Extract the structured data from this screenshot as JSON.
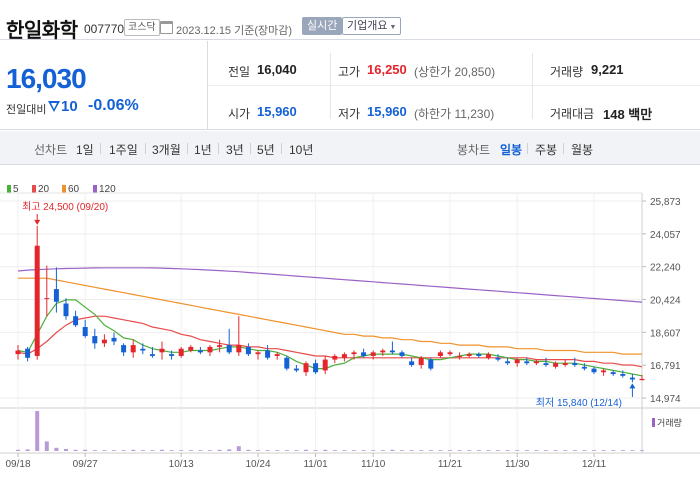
{
  "header": {
    "stock_name": "한일화학",
    "stock_code": "007770",
    "market": "코스닥",
    "base_date": "2023.12.15  기준(장마감)",
    "realtime_label": "실시간",
    "company_info_label": "기업개요"
  },
  "price": {
    "current": "16,030",
    "change_label": "전일대비",
    "change_value": "10",
    "change_rate": "-0.06%",
    "down_color": "#1461d6",
    "up_color": "#e4262c"
  },
  "quote": {
    "prev_close": {
      "label": "전일",
      "value": "16,040"
    },
    "high": {
      "label": "고가",
      "value": "16,250",
      "sub": "(상한가 20,850)"
    },
    "volume": {
      "label": "거래량",
      "value": "9,221"
    },
    "open": {
      "label": "시가",
      "value": "15,960"
    },
    "low": {
      "label": "저가",
      "value": "15,960",
      "sub": "(하한가 11,230)"
    },
    "trade_value": {
      "label": "거래대금",
      "value": "148 백만"
    }
  },
  "toolbar": {
    "line_chart_label": "선차트",
    "periods": [
      "1일",
      "1주일",
      "3개월",
      "1년",
      "3년",
      "5년",
      "10년"
    ],
    "candle_chart_label": "봉차트",
    "candle_periods": [
      "일봉",
      "주봉",
      "월봉"
    ],
    "active_candle_period": "일봉"
  },
  "chart_data": {
    "type": "candlestick",
    "legend": [
      {
        "name": "5",
        "color": "#4caf3a"
      },
      {
        "name": "20",
        "color": "#e84b4b"
      },
      {
        "name": "60",
        "color": "#f0922b"
      },
      {
        "name": "120",
        "color": "#9a62c6"
      }
    ],
    "y_ticks": [
      "25,873",
      "24,057",
      "22,240",
      "20,424",
      "18,607",
      "16,791",
      "14,974"
    ],
    "y_range": [
      14974,
      25873
    ],
    "x_ticks": [
      "09/18",
      "09/27",
      "10/13",
      "10/24",
      "11/01",
      "11/10",
      "11/21",
      "11/30",
      "12/11"
    ],
    "max_annotation": "최고 24,500 (09/20)",
    "min_annotation": "최저 15,840 (12/14)",
    "volume_label": "거래량",
    "up_color": "#e4262c",
    "down_color": "#1461d6",
    "candles": [
      [
        17400,
        17900,
        17100,
        17600
      ],
      [
        17700,
        17800,
        17000,
        17200
      ],
      [
        17300,
        24500,
        17100,
        23400
      ],
      [
        20500,
        22300,
        19500,
        20500
      ],
      [
        21000,
        22200,
        19700,
        20300
      ],
      [
        20200,
        20500,
        19300,
        19500
      ],
      [
        19500,
        19800,
        18900,
        19000
      ],
      [
        18900,
        19300,
        18300,
        18400
      ],
      [
        18400,
        18800,
        17700,
        18000
      ],
      [
        18000,
        18500,
        17800,
        18200
      ],
      [
        18300,
        18600,
        17900,
        18100
      ],
      [
        17900,
        18000,
        17300,
        17500
      ],
      [
        17500,
        18200,
        17200,
        17900
      ],
      [
        17700,
        18000,
        17400,
        17600
      ],
      [
        17400,
        17800,
        17200,
        17300
      ],
      [
        17500,
        18100,
        17100,
        17700
      ],
      [
        17400,
        17600,
        17100,
        17300
      ],
      [
        17300,
        17800,
        17200,
        17700
      ],
      [
        17600,
        17900,
        17500,
        17800
      ],
      [
        17600,
        17800,
        17400,
        17500
      ],
      [
        17500,
        17900,
        17300,
        17800
      ],
      [
        17800,
        18200,
        17500,
        17900
      ],
      [
        17900,
        18800,
        17400,
        17500
      ],
      [
        17500,
        19500,
        17300,
        17900
      ],
      [
        17800,
        18000,
        17300,
        17400
      ],
      [
        17400,
        17600,
        17100,
        17500
      ],
      [
        17600,
        17900,
        17100,
        17200
      ],
      [
        17300,
        17500,
        17100,
        17400
      ],
      [
        17200,
        17300,
        16500,
        16600
      ],
      [
        16600,
        16800,
        16400,
        16500
      ],
      [
        16400,
        17000,
        16200,
        16900
      ],
      [
        16900,
        17100,
        16300,
        16400
      ],
      [
        16500,
        17300,
        16300,
        17100
      ],
      [
        17100,
        17400,
        16900,
        17300
      ],
      [
        17200,
        17500,
        17000,
        17400
      ],
      [
        17400,
        17600,
        17100,
        17500
      ],
      [
        17500,
        17700,
        17200,
        17300
      ],
      [
        17300,
        17600,
        17100,
        17500
      ],
      [
        17500,
        17700,
        17300,
        17600
      ],
      [
        17600,
        18100,
        17400,
        17500
      ],
      [
        17500,
        17600,
        17200,
        17300
      ],
      [
        17000,
        17200,
        16700,
        16800
      ],
      [
        16800,
        17300,
        16600,
        17200
      ],
      [
        17100,
        17200,
        16500,
        16600
      ],
      [
        17300,
        17600,
        17200,
        17500
      ],
      [
        17400,
        17600,
        17300,
        17500
      ],
      [
        17300,
        17500,
        17100,
        17300
      ],
      [
        17300,
        17500,
        17200,
        17400
      ],
      [
        17400,
        17500,
        17200,
        17300
      ],
      [
        17200,
        17500,
        17100,
        17400
      ],
      [
        17200,
        17400,
        17000,
        17100
      ],
      [
        17000,
        17200,
        16800,
        16900
      ],
      [
        16900,
        17200,
        16700,
        17100
      ],
      [
        17000,
        17200,
        16800,
        16900
      ],
      [
        16900,
        17100,
        16800,
        17000
      ],
      [
        16900,
        17200,
        16700,
        16800
      ],
      [
        16700,
        17000,
        16600,
        16900
      ],
      [
        16800,
        17100,
        16700,
        16900
      ],
      [
        16900,
        17200,
        16700,
        16800
      ],
      [
        16700,
        16900,
        16500,
        16600
      ],
      [
        16600,
        16700,
        16300,
        16400
      ],
      [
        16400,
        16600,
        16200,
        16500
      ],
      [
        16400,
        16500,
        16200,
        16300
      ],
      [
        16300,
        16500,
        16100,
        16200
      ],
      [
        16100,
        16300,
        15840,
        16000
      ],
      [
        15960,
        16250,
        15960,
        16030
      ]
    ],
    "ma5": [
      17600,
      17500,
      18500,
      19500,
      20200,
      20400,
      20400,
      20000,
      19600,
      19000,
      18700,
      18300,
      18200,
      17900,
      17700,
      17600,
      17500,
      17500,
      17600,
      17600,
      17600,
      17700,
      17800,
      17800,
      17700,
      17600,
      17600,
      17500,
      17300,
      17000,
      16800,
      16600,
      16600,
      16800,
      16900,
      17200,
      17300,
      17400,
      17400,
      17400,
      17400,
      17300,
      17200,
      17100,
      17100,
      17200,
      17300,
      17400,
      17400,
      17400,
      17300,
      17200,
      17100,
      17100,
      17000,
      17000,
      16900,
      16900,
      16900,
      16800,
      16700,
      16600,
      16500,
      16400,
      16300,
      16200
    ],
    "ma20": [
      17500,
      17400,
      17700,
      18100,
      18600,
      19000,
      19300,
      19400,
      19500,
      19500,
      19400,
      19300,
      19200,
      19100,
      18900,
      18800,
      18700,
      18500,
      18400,
      18200,
      18100,
      18000,
      17900,
      17900,
      17800,
      17800,
      17700,
      17700,
      17600,
      17500,
      17400,
      17300,
      17300,
      17200,
      17200,
      17200,
      17200,
      17200,
      17200,
      17200,
      17200,
      17200,
      17200,
      17200,
      17200,
      17200,
      17200,
      17200,
      17200,
      17200,
      17200,
      17200,
      17200,
      17200,
      17100,
      17100,
      17100,
      17100,
      17100,
      17000,
      17000,
      16900,
      16900,
      16800,
      16800,
      16700
    ],
    "ma60": [
      21600,
      21600,
      21600,
      21600,
      21500,
      21400,
      21300,
      21200,
      21100,
      21000,
      20900,
      20800,
      20700,
      20600,
      20500,
      20400,
      20300,
      20200,
      20100,
      20000,
      19900,
      19800,
      19700,
      19600,
      19500,
      19400,
      19300,
      19200,
      19100,
      19000,
      18900,
      18800,
      18700,
      18600,
      18500,
      18500,
      18400,
      18400,
      18300,
      18300,
      18200,
      18200,
      18100,
      18100,
      18000,
      18000,
      17900,
      17900,
      17900,
      17800,
      17800,
      17800,
      17700,
      17700,
      17700,
      17600,
      17600,
      17600,
      17600,
      17500,
      17500,
      17500,
      17500,
      17400,
      17400,
      17400
    ],
    "ma120": [
      22000,
      22050,
      22080,
      22100,
      22120,
      22140,
      22150,
      22160,
      22170,
      22180,
      22180,
      22180,
      22180,
      22180,
      22170,
      22160,
      22140,
      22120,
      22100,
      22080,
      22050,
      22020,
      21990,
      21960,
      21920,
      21880,
      21840,
      21800,
      21760,
      21720,
      21680,
      21640,
      21600,
      21560,
      21520,
      21480,
      21440,
      21400,
      21360,
      21320,
      21280,
      21240,
      21200,
      21160,
      21120,
      21080,
      21040,
      21000,
      20960,
      20920,
      20880,
      20840,
      20800,
      20760,
      20720,
      20680,
      20640,
      20600,
      20560,
      20520,
      20480,
      20440,
      20400,
      20360,
      20320,
      20280
    ],
    "volume": [
      3,
      4,
      100,
      24,
      8,
      5,
      3,
      3,
      2,
      2,
      2,
      2,
      3,
      2,
      2,
      3,
      2,
      2,
      2,
      2,
      2,
      3,
      4,
      12,
      3,
      2,
      2,
      2,
      2,
      2,
      3,
      2,
      3,
      2,
      2,
      2,
      2,
      2,
      2,
      3,
      2,
      2,
      2,
      2,
      2,
      2,
      2,
      2,
      2,
      2,
      2,
      2,
      2,
      2,
      2,
      2,
      2,
      2,
      2,
      2,
      2,
      2,
      2,
      2,
      2,
      2
    ]
  }
}
